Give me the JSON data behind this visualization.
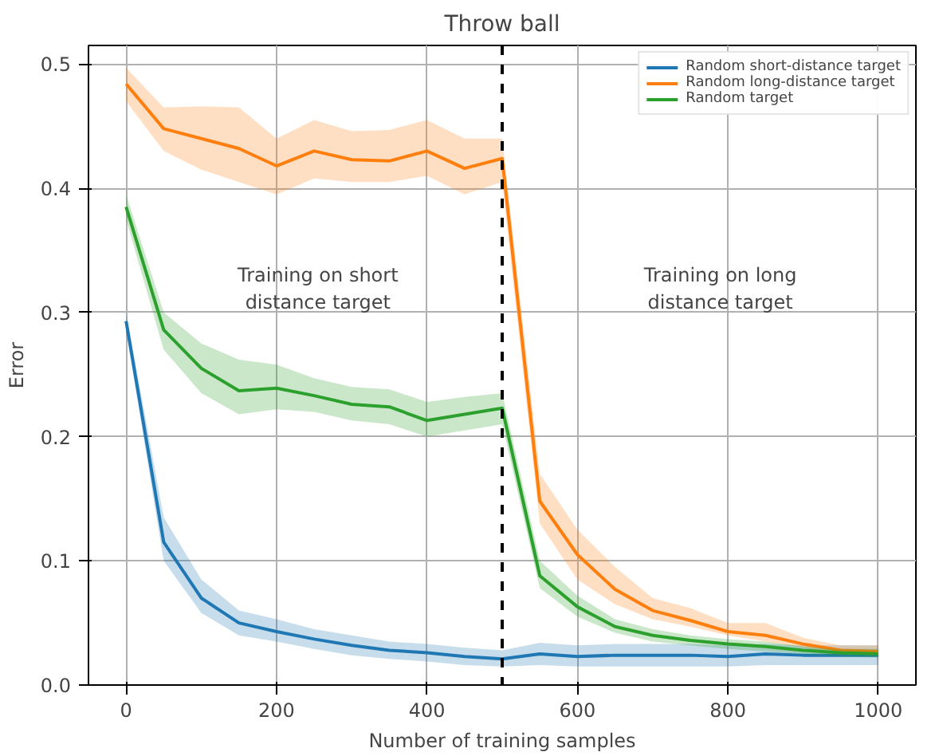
{
  "chart_data": {
    "type": "line",
    "title": "Throw ball",
    "xlabel": "Number of training samples",
    "ylabel": "Error",
    "x": [
      0,
      50,
      100,
      150,
      200,
      250,
      300,
      350,
      400,
      450,
      500,
      550,
      600,
      650,
      700,
      750,
      800,
      850,
      900,
      950,
      1000
    ],
    "series": [
      {
        "name": "Random short-distance target",
        "color": "#1f77b4",
        "values": [
          0.293,
          0.115,
          0.07,
          0.05,
          0.043,
          0.037,
          0.032,
          0.028,
          0.026,
          0.023,
          0.021,
          0.025,
          0.023,
          0.024,
          0.024,
          0.024,
          0.023,
          0.025,
          0.024,
          0.024,
          0.024
        ],
        "lower": [
          0.285,
          0.1,
          0.058,
          0.04,
          0.035,
          0.029,
          0.024,
          0.021,
          0.019,
          0.016,
          0.015,
          0.016,
          0.015,
          0.015,
          0.015,
          0.015,
          0.015,
          0.016,
          0.016,
          0.016,
          0.016
        ],
        "upper": [
          0.3,
          0.135,
          0.085,
          0.06,
          0.053,
          0.045,
          0.04,
          0.035,
          0.033,
          0.03,
          0.028,
          0.034,
          0.032,
          0.033,
          0.033,
          0.033,
          0.032,
          0.033,
          0.032,
          0.032,
          0.032
        ]
      },
      {
        "name": "Random long-distance target",
        "color": "#ff7f0e",
        "values": [
          0.484,
          0.448,
          0.44,
          0.432,
          0.418,
          0.43,
          0.423,
          0.422,
          0.43,
          0.416,
          0.424,
          0.148,
          0.105,
          0.077,
          0.06,
          0.052,
          0.043,
          0.04,
          0.033,
          0.028,
          0.027
        ],
        "lower": [
          0.47,
          0.43,
          0.415,
          0.405,
          0.395,
          0.408,
          0.405,
          0.405,
          0.41,
          0.395,
          0.405,
          0.13,
          0.085,
          0.065,
          0.053,
          0.047,
          0.04,
          0.035,
          0.03,
          0.025,
          0.025
        ],
        "upper": [
          0.497,
          0.465,
          0.466,
          0.465,
          0.44,
          0.455,
          0.446,
          0.447,
          0.455,
          0.44,
          0.44,
          0.17,
          0.125,
          0.095,
          0.07,
          0.062,
          0.05,
          0.05,
          0.038,
          0.032,
          0.032
        ]
      },
      {
        "name": "Random target",
        "color": "#2ca02c",
        "values": [
          0.385,
          0.286,
          0.255,
          0.237,
          0.239,
          0.233,
          0.226,
          0.224,
          0.213,
          0.218,
          0.223,
          0.088,
          0.063,
          0.047,
          0.04,
          0.036,
          0.033,
          0.031,
          0.028,
          0.026,
          0.025
        ],
        "lower": [
          0.375,
          0.27,
          0.235,
          0.218,
          0.222,
          0.22,
          0.213,
          0.21,
          0.2,
          0.205,
          0.21,
          0.078,
          0.055,
          0.042,
          0.035,
          0.032,
          0.029,
          0.027,
          0.025,
          0.023,
          0.022
        ],
        "upper": [
          0.395,
          0.3,
          0.275,
          0.262,
          0.258,
          0.247,
          0.24,
          0.238,
          0.228,
          0.232,
          0.235,
          0.1,
          0.072,
          0.053,
          0.045,
          0.04,
          0.037,
          0.035,
          0.031,
          0.029,
          0.029
        ]
      }
    ],
    "xlim": [
      -50,
      1050
    ],
    "xticks": [
      0,
      200,
      400,
      600,
      800,
      1000
    ],
    "ylim": [
      0,
      0.515
    ],
    "yticks": [
      {
        "value": 0,
        "label": "0.0"
      },
      0.1,
      0.2,
      0.3,
      0.4,
      0.5
    ],
    "ref_lines": [
      {
        "axis": "x",
        "value": 500,
        "color": "#000000",
        "line_style": "dashed"
      }
    ],
    "annotations": [
      "Training on short\ndistance target",
      "Training on long\ndistance target"
    ],
    "grid": true,
    "legend": "top right",
    "marker": "none",
    "line_style": "solid"
  }
}
